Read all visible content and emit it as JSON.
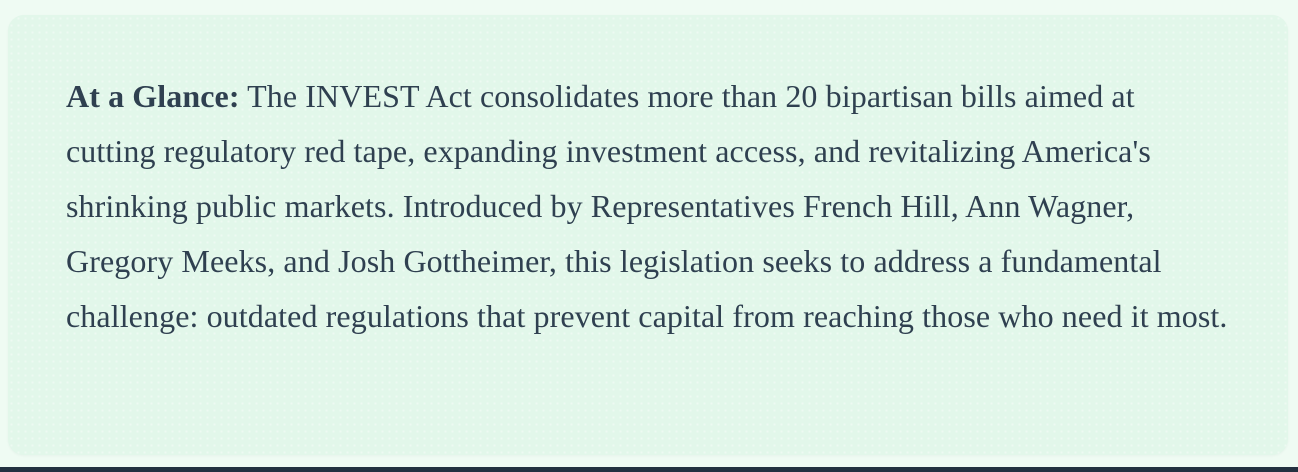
{
  "callout": {
    "label": "At a Glance:",
    "body": " The INVEST Act consolidates more than 20 bipartisan bills aimed at cutting regulatory red tape, expanding investment access, and revitalizing America's shrinking public markets. Introduced by Representatives French Hill, Ann Wagner, Gregory Meeks, and Josh Gottheimer, this legislation seeks to address a fundamental challenge: outdated regulations that prevent capital from reaching those who need it most."
  },
  "colors": {
    "page_bg": "#effbf3",
    "card_bg": "#e2f7ea",
    "text": "#2f4050",
    "bottom_bar": "#233140"
  }
}
